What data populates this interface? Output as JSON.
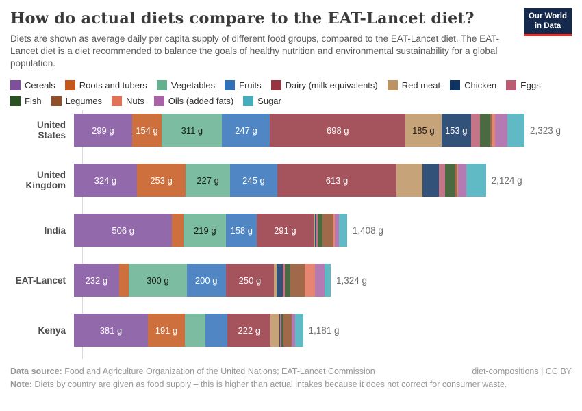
{
  "header": {
    "title": "How do actual diets compare to the EAT-Lancet diet?",
    "subtitle": "Diets are shown as average daily per capita supply of different food groups, compared to the EAT-Lancet diet. The EAT-Lancet diet is a diet recommended to balance the goals of healthy nutrition and environmental sustainability for a global population.",
    "logo": {
      "line1": "Our World",
      "line2": "in Data",
      "bg_color": "#14294B",
      "accent_color": "#D4342C"
    }
  },
  "chart_data": {
    "type": "bar",
    "orientation": "horizontal",
    "stacked": true,
    "unit": "g per capita per day",
    "title": "How do actual diets compare to the EAT-Lancet diet?",
    "legend_position": "top",
    "grid": false,
    "foods": [
      {
        "name": "Cereals",
        "color": "#7F4E9C"
      },
      {
        "name": "Roots and tubers",
        "color": "#C4571C"
      },
      {
        "name": "Vegetables",
        "color": "#65B08F",
        "dark_label": true
      },
      {
        "name": "Fruits",
        "color": "#3071B8"
      },
      {
        "name": "Dairy (milk equivalents)",
        "color": "#953540"
      },
      {
        "name": "Red meat",
        "color": "#BD9363",
        "dark_label": true
      },
      {
        "name": "Chicken",
        "color": "#0F3363"
      },
      {
        "name": "Eggs",
        "color": "#BC5C73"
      },
      {
        "name": "Fish",
        "color": "#2A5121"
      },
      {
        "name": "Legumes",
        "color": "#8F4F2A"
      },
      {
        "name": "Nuts",
        "color": "#E17057"
      },
      {
        "name": "Oils (added fats)",
        "color": "#A962A6"
      },
      {
        "name": "Sugar",
        "color": "#44AEBC"
      }
    ],
    "rows": [
      {
        "country": "United States",
        "total": 2323,
        "total_label": "2,323 g",
        "segments": [
          {
            "food": "Cereals",
            "value": 299,
            "label": "299 g"
          },
          {
            "food": "Roots and tubers",
            "value": 154,
            "label": "154 g"
          },
          {
            "food": "Vegetables",
            "value": 311,
            "label": "311 g"
          },
          {
            "food": "Fruits",
            "value": 247,
            "label": "247 g"
          },
          {
            "food": "Dairy (milk equivalents)",
            "value": 698,
            "label": "698 g"
          },
          {
            "food": "Red meat",
            "value": 185,
            "label": "185 g"
          },
          {
            "food": "Chicken",
            "value": 153,
            "label": "153 g"
          },
          {
            "food": "Eggs",
            "value": 46
          },
          {
            "food": "Fish",
            "value": 53
          },
          {
            "food": "Legumes",
            "value": 12
          },
          {
            "food": "Nuts",
            "value": 14
          },
          {
            "food": "Oils (added fats)",
            "value": 63
          },
          {
            "food": "Sugar",
            "value": 88
          }
        ]
      },
      {
        "country": "United Kingdom",
        "total": 2124,
        "total_label": "2,124 g",
        "segments": [
          {
            "food": "Cereals",
            "value": 324,
            "label": "324 g"
          },
          {
            "food": "Roots and tubers",
            "value": 253,
            "label": "253 g"
          },
          {
            "food": "Vegetables",
            "value": 227,
            "label": "227 g"
          },
          {
            "food": "Fruits",
            "value": 245,
            "label": "245 g"
          },
          {
            "food": "Dairy (milk equivalents)",
            "value": 613,
            "label": "613 g"
          },
          {
            "food": "Red meat",
            "value": 136
          },
          {
            "food": "Chicken",
            "value": 83
          },
          {
            "food": "Eggs",
            "value": 33
          },
          {
            "food": "Fish",
            "value": 50
          },
          {
            "food": "Legumes",
            "value": 12
          },
          {
            "food": "Nuts",
            "value": 6
          },
          {
            "food": "Oils (added fats)",
            "value": 42
          },
          {
            "food": "Sugar",
            "value": 100
          }
        ]
      },
      {
        "country": "India",
        "total": 1408,
        "total_label": "1,408 g",
        "segments": [
          {
            "food": "Cereals",
            "value": 506,
            "label": "506 g"
          },
          {
            "food": "Roots and tubers",
            "value": 60
          },
          {
            "food": "Vegetables",
            "value": 219,
            "label": "219 g"
          },
          {
            "food": "Fruits",
            "value": 158,
            "label": "158 g"
          },
          {
            "food": "Dairy (milk equivalents)",
            "value": 291,
            "label": "291 g"
          },
          {
            "food": "Red meat",
            "value": 9
          },
          {
            "food": "Chicken",
            "value": 6
          },
          {
            "food": "Eggs",
            "value": 8
          },
          {
            "food": "Fish",
            "value": 24
          },
          {
            "food": "Legumes",
            "value": 55
          },
          {
            "food": "Nuts",
            "value": 8
          },
          {
            "food": "Oils (added fats)",
            "value": 22
          },
          {
            "food": "Sugar",
            "value": 42
          }
        ]
      },
      {
        "country": "EAT-Lancet",
        "total": 1324,
        "total_label": "1,324 g",
        "segments": [
          {
            "food": "Cereals",
            "value": 232,
            "label": "232 g"
          },
          {
            "food": "Roots and tubers",
            "value": 50
          },
          {
            "food": "Vegetables",
            "value": 300,
            "label": "300 g"
          },
          {
            "food": "Fruits",
            "value": 200,
            "label": "200 g"
          },
          {
            "food": "Dairy (milk equivalents)",
            "value": 250,
            "label": "250 g"
          },
          {
            "food": "Red meat",
            "value": 14
          },
          {
            "food": "Chicken",
            "value": 29
          },
          {
            "food": "Eggs",
            "value": 13
          },
          {
            "food": "Fish",
            "value": 28
          },
          {
            "food": "Legumes",
            "value": 75
          },
          {
            "food": "Nuts",
            "value": 50
          },
          {
            "food": "Oils (added fats)",
            "value": 52
          },
          {
            "food": "Sugar",
            "value": 31
          }
        ]
      },
      {
        "country": "Kenya",
        "total": 1181,
        "total_label": "1,181 g",
        "segments": [
          {
            "food": "Cereals",
            "value": 381,
            "label": "381 g"
          },
          {
            "food": "Roots and tubers",
            "value": 191,
            "label": "191 g"
          },
          {
            "food": "Vegetables",
            "value": 105
          },
          {
            "food": "Fruits",
            "value": 115
          },
          {
            "food": "Dairy (milk equivalents)",
            "value": 222,
            "label": "222 g"
          },
          {
            "food": "Red meat",
            "value": 45
          },
          {
            "food": "Chicken",
            "value": 5
          },
          {
            "food": "Eggs",
            "value": 5
          },
          {
            "food": "Fish",
            "value": 12
          },
          {
            "food": "Legumes",
            "value": 40
          },
          {
            "food": "Nuts",
            "value": 3
          },
          {
            "food": "Oils (added fats)",
            "value": 17
          },
          {
            "food": "Sugar",
            "value": 40
          }
        ]
      }
    ]
  },
  "footer": {
    "source_label": "Data source:",
    "source_text": " Food and Agriculture Organization of the United Nations; EAT-Lancet Commission",
    "attribution": "diet-compositions | CC BY",
    "note_label": "Note:",
    "note_text": " Diets by country are given as food supply – this is higher than actual intakes because it does not correct for consumer waste."
  }
}
